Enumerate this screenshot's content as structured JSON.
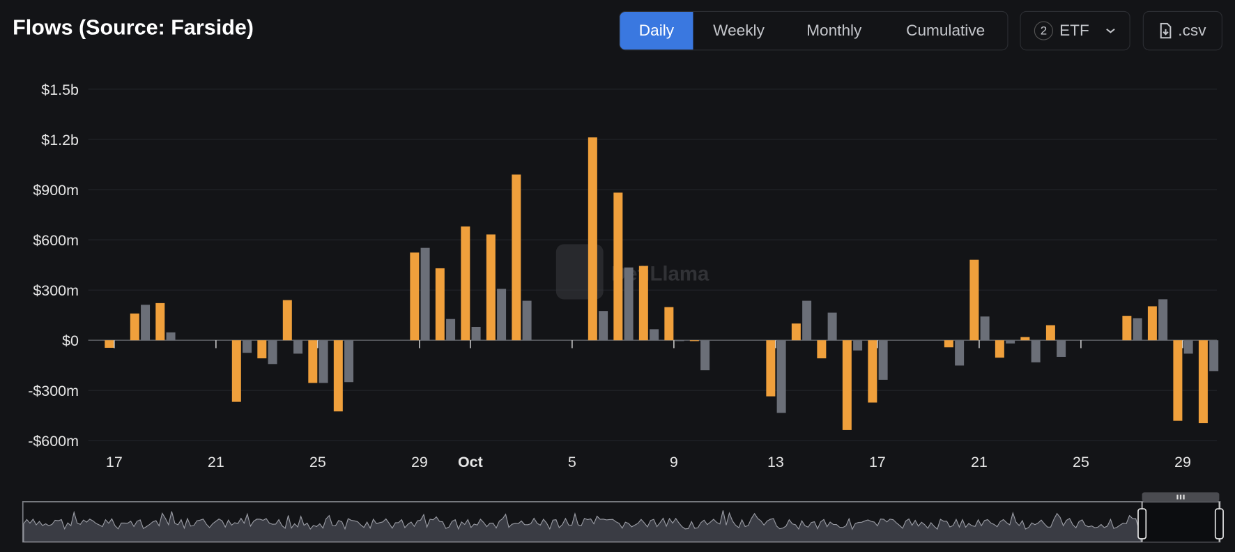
{
  "header": {
    "title": "Flows (Source: Farside)",
    "tabs": [
      {
        "label": "Daily",
        "active": true
      },
      {
        "label": "Weekly",
        "active": false
      },
      {
        "label": "Monthly",
        "active": false
      },
      {
        "label": "Cumulative",
        "active": false
      }
    ],
    "etf_count": "2",
    "etf_label": "ETF",
    "csv_label": ".csv"
  },
  "watermark": "DefiLlama",
  "colors": {
    "accent": "#3a78e0",
    "series_a": "#f0a03c",
    "series_b": "#6b6f78",
    "background": "#131417"
  },
  "chart_data": {
    "type": "bar",
    "ylim": [
      -600,
      1500
    ],
    "y_ticks": [
      {
        "v": 1500,
        "label": "$1.5b"
      },
      {
        "v": 1200,
        "label": "$1.2b"
      },
      {
        "v": 900,
        "label": "$900m"
      },
      {
        "v": 600,
        "label": "$600m"
      },
      {
        "v": 300,
        "label": "$300m"
      },
      {
        "v": 0,
        "label": "$0"
      },
      {
        "v": -300,
        "label": "-$300m"
      },
      {
        "v": -600,
        "label": "-$600m"
      }
    ],
    "x_ticks": [
      {
        "day": 0,
        "label": "17"
      },
      {
        "day": 4,
        "label": "21"
      },
      {
        "day": 8,
        "label": "25"
      },
      {
        "day": 12,
        "label": "29"
      },
      {
        "day": 14,
        "label": "Oct",
        "bold": true
      },
      {
        "day": 18,
        "label": "5"
      },
      {
        "day": 22,
        "label": "9"
      },
      {
        "day": 26,
        "label": "13"
      },
      {
        "day": 30,
        "label": "17"
      },
      {
        "day": 34,
        "label": "21"
      },
      {
        "day": 38,
        "label": "25"
      },
      {
        "day": 42,
        "label": "29"
      }
    ],
    "categories": [
      "Sep 17",
      "Sep 18",
      "Sep 19",
      "Sep 20",
      "Sep 21",
      "Sep 22",
      "Sep 23",
      "Sep 24",
      "Sep 25",
      "Sep 26",
      "Sep 27",
      "Sep 28",
      "Sep 29",
      "Sep 30",
      "Oct 1",
      "Oct 2",
      "Oct 3",
      "Oct 4",
      "Oct 5",
      "Oct 6",
      "Oct 7",
      "Oct 8",
      "Oct 9",
      "Oct 10",
      "Oct 11",
      "Oct 12",
      "Oct 13",
      "Oct 14",
      "Oct 15",
      "Oct 16",
      "Oct 17",
      "Oct 18",
      "Oct 19",
      "Oct 20",
      "Oct 21",
      "Oct 22",
      "Oct 23",
      "Oct 24",
      "Oct 25",
      "Oct 26",
      "Oct 27",
      "Oct 28",
      "Oct 29",
      "Oct 30"
    ],
    "unit": "USD millions",
    "series": [
      {
        "color": "#f0a03c",
        "values": [
          -45,
          160,
          222,
          0,
          0,
          -368,
          -108,
          240,
          -255,
          -425,
          0,
          0,
          524,
          430,
          680,
          632,
          990,
          0,
          0,
          1212,
          882,
          444,
          198,
          -5,
          0,
          0,
          -335,
          100,
          -108,
          -536,
          -372,
          0,
          0,
          -42,
          481,
          -104,
          19,
          90,
          0,
          0,
          146,
          203,
          -481,
          -495
        ]
      },
      {
        "color": "#6b6f78",
        "values": [
          0,
          212,
          47,
          0,
          0,
          -75,
          -142,
          -80,
          -255,
          -250,
          0,
          0,
          552,
          127,
          80,
          307,
          236,
          0,
          0,
          175,
          435,
          66,
          -5,
          -179,
          0,
          0,
          -434,
          236,
          165,
          -61,
          -236,
          0,
          0,
          -151,
          142,
          -19,
          -132,
          -99,
          0,
          0,
          132,
          245,
          -80,
          -184
        ]
      }
    ],
    "grid": true,
    "legend": "none"
  }
}
